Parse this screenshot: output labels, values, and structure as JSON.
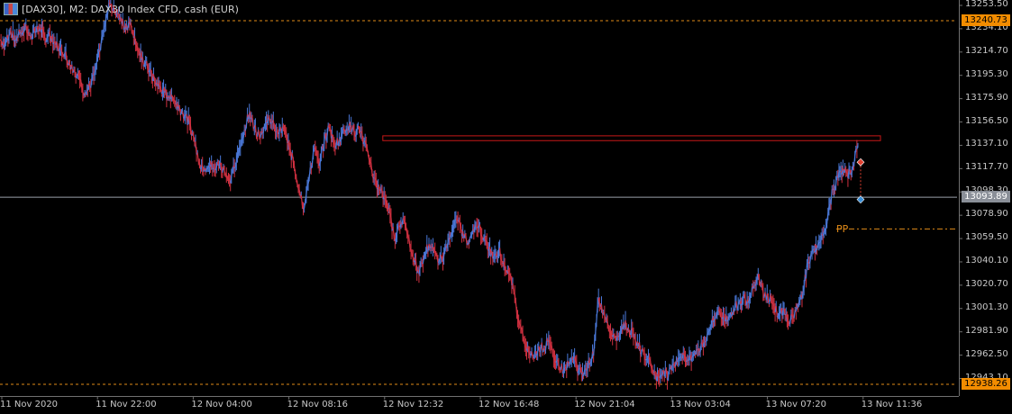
{
  "header": {
    "title": "[DAX30], M2:  DAX30 Index CFD, cash (EUR)"
  },
  "price_tags": {
    "upper": {
      "label": "13240.73",
      "value": 13240.73,
      "color": "#f28c00"
    },
    "current": {
      "label": "13093.89",
      "value": 13093.89,
      "color": "#8a8f98"
    },
    "lower": {
      "label": "12938.26",
      "value": 12938.26,
      "color": "#f28c00"
    }
  },
  "pp_label": "PP",
  "colors": {
    "bull": "#4a78d8",
    "bear": "#d03040",
    "level_line": "#e08a18",
    "zone": "#c81818",
    "current_line": "#9aa0aa",
    "marker_red": "#e04030",
    "marker_blue": "#3a8fd8"
  },
  "chart_data": {
    "type": "line",
    "title": "[DAX30], M2:  DAX30 Index CFD, cash (EUR)",
    "xlabel": "",
    "ylabel": "",
    "ylim": [
      12930,
      13258
    ],
    "grid": false,
    "y_ticks": [
      "13253.50",
      "13234.10",
      "13214.70",
      "13195.30",
      "13175.90",
      "13156.50",
      "13137.10",
      "13117.70",
      "13098.30",
      "13078.90",
      "13059.50",
      "13040.10",
      "13020.70",
      "13001.30",
      "12981.90",
      "12962.50",
      "12943.10"
    ],
    "y_tick_values": [
      13253.5,
      13234.1,
      13214.7,
      13195.3,
      13175.9,
      13156.5,
      13137.1,
      13117.7,
      13098.3,
      13078.9,
      13059.5,
      13040.1,
      13020.7,
      13001.3,
      12981.9,
      12962.5,
      12943.1
    ],
    "x_ticks": [
      "11 Nov 2020",
      "11 Nov 22:00",
      "12 Nov 04:00",
      "12 Nov 08:16",
      "12 Nov 12:32",
      "12 Nov 16:48",
      "12 Nov 21:04",
      "13 Nov 03:04",
      "13 Nov 07:20",
      "13 Nov 11:36"
    ],
    "x_tick_index": [
      0,
      1,
      2,
      3,
      4,
      5,
      6,
      7,
      8,
      9
    ],
    "x_tick_count": 10,
    "series": [
      {
        "values": [
          13225,
          13222,
          13232,
          13226,
          13230,
          13236,
          13228,
          13231,
          13235,
          13226,
          13230,
          13222,
          13218,
          13214,
          13204,
          13198,
          13192,
          13180,
          13186,
          13198,
          13215,
          13236,
          13255,
          13248,
          13242,
          13236,
          13238,
          13228,
          13212,
          13205,
          13200,
          13190,
          13186,
          13181,
          13178,
          13174,
          13168,
          13162,
          13156,
          13140,
          13122,
          13118,
          13120,
          13118,
          13121,
          13116,
          13108,
          13118,
          13135,
          13150,
          13164,
          13152,
          13144,
          13153,
          13160,
          13152,
          13148,
          13150,
          13135,
          13120,
          13100,
          13085,
          13110,
          13135,
          13120,
          13140,
          13152,
          13138,
          13142,
          13150,
          13155,
          13148,
          13150,
          13140,
          13125,
          13110,
          13100,
          13095,
          13085,
          13060,
          13070,
          13075,
          13060,
          13040,
          13030,
          13045,
          13055,
          13050,
          13040,
          13045,
          13060,
          13070,
          13075,
          13060,
          13055,
          13065,
          13070,
          13060,
          13050,
          13045,
          13050,
          13040,
          13030,
          13015,
          12990,
          12975,
          12965,
          12960,
          12970,
          12968,
          12975,
          12960,
          12955,
          12950,
          12955,
          12960,
          12950,
          12945,
          12958,
          12962,
          13010,
          12998,
          12985,
          12980,
          12978,
          12990,
          12985,
          12978,
          12970,
          12965,
          12960,
          12948,
          12944,
          12950,
          12945,
          12955,
          12960,
          12964,
          12958,
          12962,
          12968,
          12970,
          12982,
          12990,
          13000,
          12995,
          12992,
          13000,
          13005,
          13010,
          13006,
          13018,
          13030,
          13015,
          13010,
          13005,
          12995,
          13000,
          12990,
          12995,
          13002,
          13015,
          13040,
          13050,
          13055,
          13062,
          13080,
          13100,
          13110,
          13118,
          13110,
          13120,
          13137
        ]
      }
    ],
    "levels": [
      {
        "label": "13240.73",
        "value": 13240.73
      },
      {
        "label": "12938.26",
        "value": 12938.26
      }
    ],
    "current_price": 13093.89,
    "pp_value": 13067.5,
    "zone": {
      "low": 13141,
      "high": 13145,
      "from_frac": 0.4,
      "to_frac": 0.92
    },
    "trade": {
      "entry": 13123,
      "target": 13092
    }
  }
}
